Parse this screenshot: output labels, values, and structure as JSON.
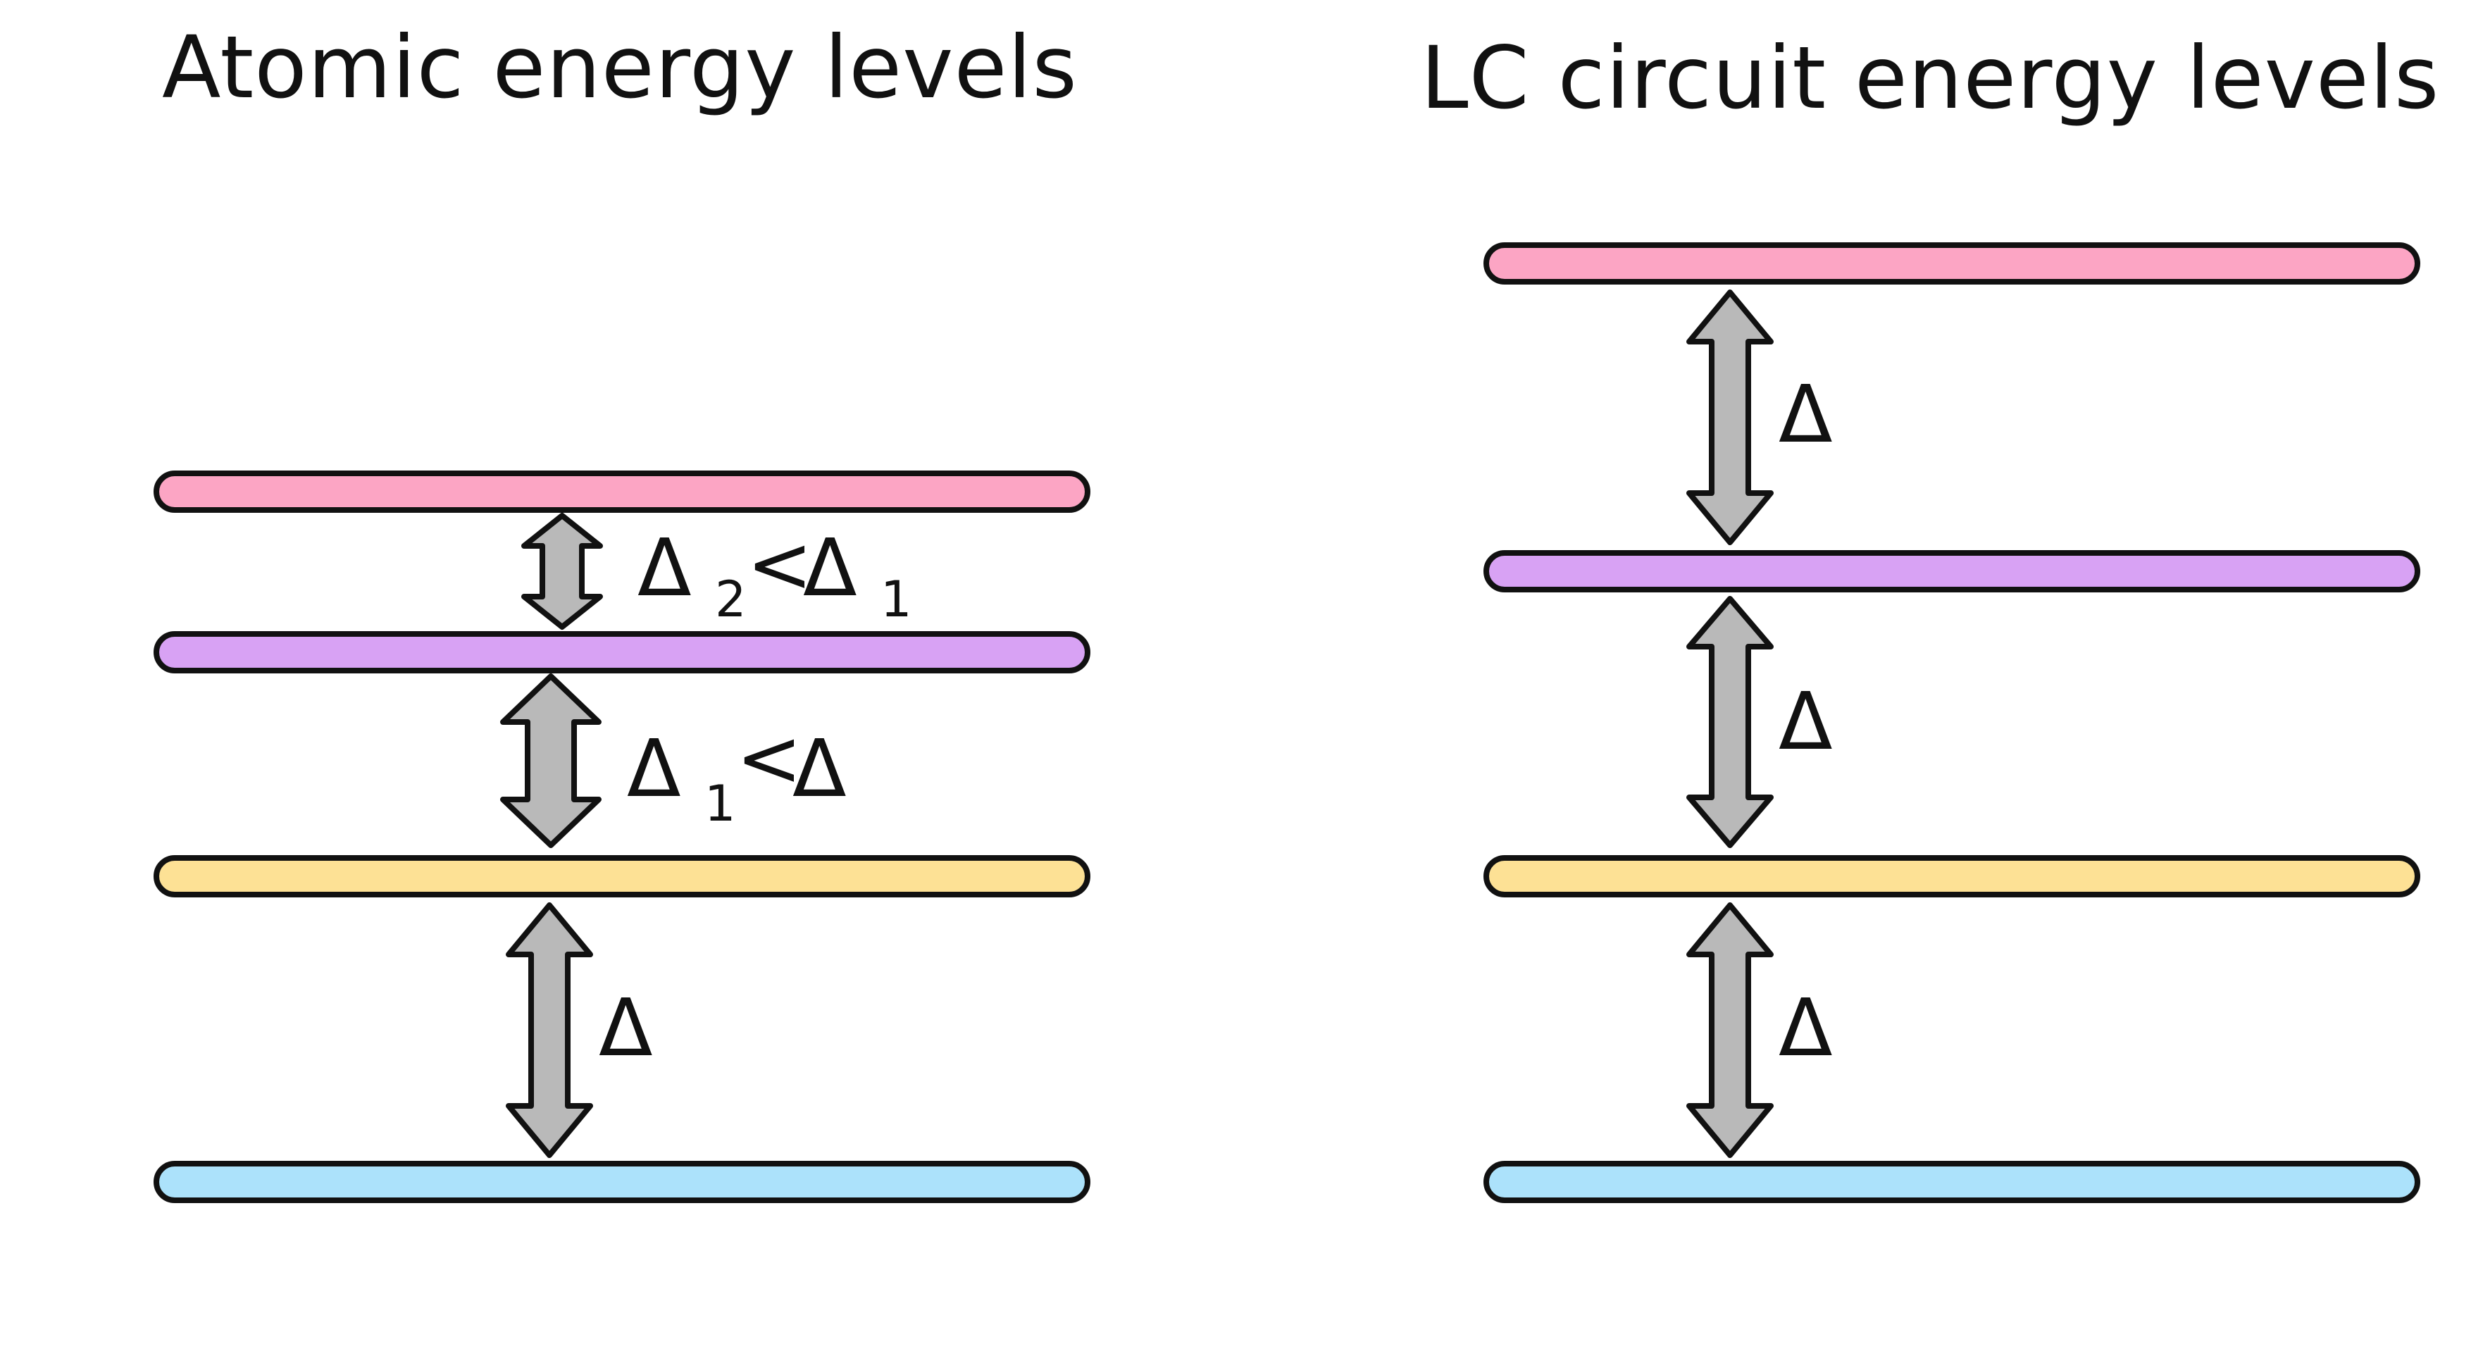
{
  "diagram": {
    "left_panel": {
      "title": "Atomic energy levels",
      "levels": [
        {
          "id": "level-4",
          "color": "#fca5c4"
        },
        {
          "id": "level-3",
          "color": "#d8a2f4"
        },
        {
          "id": "level-2",
          "color": "#fde195"
        },
        {
          "id": "level-1",
          "color": "#ace2fb"
        }
      ],
      "gaps": [
        {
          "symbol": "Δ",
          "sub": "2",
          "relation": "<",
          "symbol2": "Δ",
          "sub2": "1"
        },
        {
          "symbol": "Δ",
          "sub": "1",
          "relation": "<",
          "symbol2": "Δ",
          "sub2": ""
        },
        {
          "symbol": "Δ"
        }
      ]
    },
    "right_panel": {
      "title": "LC circuit energy levels",
      "levels": [
        {
          "id": "level-4",
          "color": "#fca5c4"
        },
        {
          "id": "level-3",
          "color": "#d8a2f4"
        },
        {
          "id": "level-2",
          "color": "#fde195"
        },
        {
          "id": "level-1",
          "color": "#ace2fb"
        }
      ],
      "gaps": [
        {
          "symbol": "Δ"
        },
        {
          "symbol": "Δ"
        },
        {
          "symbol": "Δ"
        }
      ]
    },
    "arrow_color": "#b9b9b9",
    "outline_color": "#111111"
  }
}
